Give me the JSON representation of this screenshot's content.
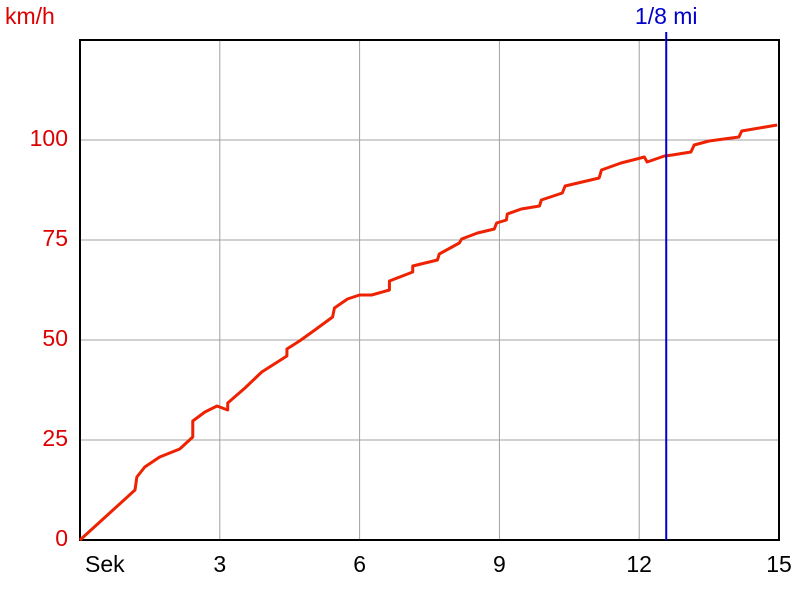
{
  "chart_data": {
    "type": "line",
    "y_label": "km/h",
    "x": [
      0,
      1.18,
      1.22,
      1.39,
      1.71,
      2.14,
      2.42,
      2.42,
      2.68,
      2.94,
      3.17,
      3.17,
      3.54,
      3.9,
      4.44,
      4.44,
      4.71,
      5.04,
      5.42,
      5.46,
      5.74,
      6,
      6.26,
      6.64,
      6.64,
      7.14,
      7.14,
      7.67,
      7.71,
      8.14,
      8.19,
      8.53,
      8.89,
      8.94,
      9.15,
      9.17,
      9.47,
      9.86,
      9.9,
      10.35,
      10.41,
      11.14,
      11.19,
      11.61,
      12.11,
      12.17,
      12.54,
      12.71,
      13.11,
      13.18,
      13.5,
      14.14,
      14.2,
      14.96
    ],
    "series": [
      {
        "color": "#ee2200",
        "values": [
          0,
          12.5,
          15.75,
          18.25,
          20.75,
          22.75,
          25.75,
          29.75,
          32,
          33.5,
          32.5,
          34.25,
          38,
          42,
          46,
          47.75,
          49.75,
          52.5,
          55.75,
          58,
          60.25,
          61.25,
          61.25,
          62.5,
          64.75,
          67,
          68.5,
          70,
          71.5,
          74.25,
          75.25,
          76.75,
          77.75,
          79.25,
          80,
          81.5,
          82.75,
          83.5,
          85,
          86.75,
          88.5,
          90.5,
          92.5,
          94.25,
          95.75,
          94.5,
          96,
          96.25,
          97,
          98.75,
          99.75,
          100.75,
          102.25,
          103.75
        ]
      }
    ],
    "xlim": [
      0,
      15
    ],
    "xticks": [
      {
        "value": 0,
        "label": "Sek"
      },
      3,
      6,
      9,
      12,
      15
    ],
    "ylim": [
      0,
      125
    ],
    "yticks": [
      0,
      25,
      50,
      75,
      100
    ],
    "grid": true,
    "annotations": [
      {
        "x": 12.58,
        "label": "1/8 mi",
        "color": "#0000cc"
      }
    ]
  }
}
